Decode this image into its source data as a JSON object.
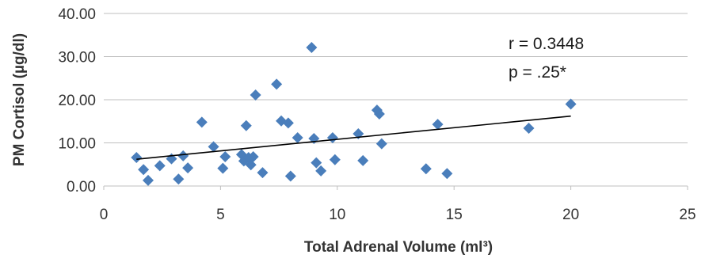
{
  "chart_data": {
    "type": "scatter",
    "xlabel": "Total Adrenal Volume (ml³)",
    "ylabel": "PM Cortisol  (µg/dl)",
    "xlim": [
      0,
      25
    ],
    "ylim": [
      0,
      40
    ],
    "x_ticks": [
      "0",
      "5",
      "10",
      "15",
      "20",
      "25"
    ],
    "y_ticks": [
      "0.00",
      "10.00",
      "20.00",
      "30.00",
      "40.00"
    ],
    "grid": "horizontal",
    "marker_color": "#4a7ebb",
    "trendline": {
      "x": [
        1.4,
        20.0
      ],
      "y": [
        6.2,
        16.2
      ]
    },
    "annotations": [
      "r = 0.3448",
      "p = .25*"
    ],
    "points": [
      {
        "x": 1.4,
        "y": 6.6
      },
      {
        "x": 1.7,
        "y": 3.8
      },
      {
        "x": 1.9,
        "y": 1.3
      },
      {
        "x": 2.4,
        "y": 4.7
      },
      {
        "x": 2.9,
        "y": 6.3
      },
      {
        "x": 3.2,
        "y": 1.6
      },
      {
        "x": 3.4,
        "y": 7.0
      },
      {
        "x": 3.6,
        "y": 4.2
      },
      {
        "x": 4.2,
        "y": 14.8
      },
      {
        "x": 4.7,
        "y": 9.1
      },
      {
        "x": 5.1,
        "y": 4.1
      },
      {
        "x": 5.2,
        "y": 6.8
      },
      {
        "x": 5.9,
        "y": 7.3
      },
      {
        "x": 6.0,
        "y": 5.8
      },
      {
        "x": 6.1,
        "y": 14.0
      },
      {
        "x": 6.2,
        "y": 6.6
      },
      {
        "x": 6.3,
        "y": 4.9
      },
      {
        "x": 6.4,
        "y": 6.8
      },
      {
        "x": 6.5,
        "y": 21.1
      },
      {
        "x": 6.8,
        "y": 3.1
      },
      {
        "x": 7.4,
        "y": 23.6
      },
      {
        "x": 7.6,
        "y": 15.1
      },
      {
        "x": 7.9,
        "y": 14.6
      },
      {
        "x": 8.0,
        "y": 2.3
      },
      {
        "x": 8.3,
        "y": 11.2
      },
      {
        "x": 8.9,
        "y": 32.1
      },
      {
        "x": 9.0,
        "y": 11.0
      },
      {
        "x": 9.1,
        "y": 5.4
      },
      {
        "x": 9.3,
        "y": 3.5
      },
      {
        "x": 9.8,
        "y": 11.2
      },
      {
        "x": 9.9,
        "y": 6.1
      },
      {
        "x": 10.9,
        "y": 12.1
      },
      {
        "x": 11.1,
        "y": 5.9
      },
      {
        "x": 11.7,
        "y": 17.6
      },
      {
        "x": 11.8,
        "y": 16.7
      },
      {
        "x": 11.9,
        "y": 9.8
      },
      {
        "x": 13.8,
        "y": 4.0
      },
      {
        "x": 14.3,
        "y": 14.3
      },
      {
        "x": 14.7,
        "y": 2.9
      },
      {
        "x": 18.2,
        "y": 13.4
      },
      {
        "x": 20.0,
        "y": 19.0
      }
    ]
  }
}
